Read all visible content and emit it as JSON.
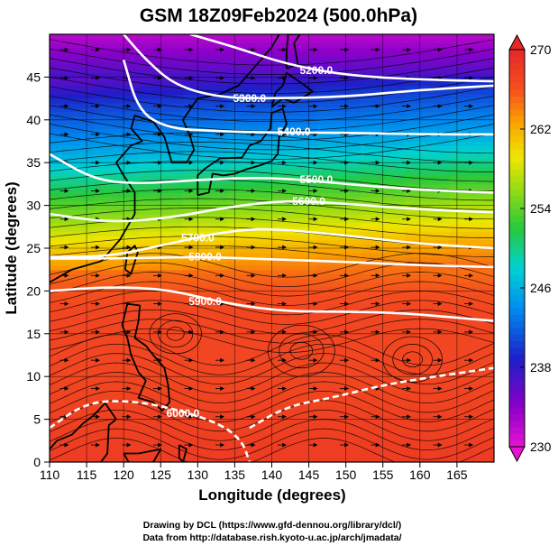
{
  "chart_data": {
    "type": "heatmap",
    "title": "GSM 18Z09Feb2024 (500.0hPa)",
    "xlabel": "Longitude (degrees)",
    "ylabel": "Latitude  (degrees)",
    "xlim": [
      110,
      170
    ],
    "ylim": [
      0,
      50
    ],
    "x_ticks": [
      110,
      115,
      120,
      125,
      130,
      135,
      140,
      145,
      150,
      155,
      160,
      165
    ],
    "y_ticks": [
      0,
      5,
      10,
      15,
      20,
      25,
      30,
      35,
      40,
      45
    ],
    "colorbar": {
      "min": 230,
      "max": 270,
      "ticks": [
        230,
        238,
        246,
        254,
        262,
        270
      ]
    },
    "temperature_field": {
      "by_latitude": [
        {
          "lat": 0,
          "value": 268
        },
        {
          "lat": 10,
          "value": 267
        },
        {
          "lat": 18,
          "value": 267
        },
        {
          "lat": 22,
          "value": 265
        },
        {
          "lat": 25,
          "value": 262
        },
        {
          "lat": 28,
          "value": 258
        },
        {
          "lat": 31,
          "value": 254
        },
        {
          "lat": 34,
          "value": 250
        },
        {
          "lat": 37,
          "value": 246
        },
        {
          "lat": 40,
          "value": 243
        },
        {
          "lat": 43,
          "value": 240
        },
        {
          "lat": 46,
          "value": 236
        },
        {
          "lat": 50,
          "value": 232
        }
      ]
    },
    "contours": [
      {
        "label": "5200.0",
        "points": [
          [
            129,
            50
          ],
          [
            135,
            48.5
          ],
          [
            142,
            46.5
          ],
          [
            150,
            45.2
          ],
          [
            160,
            44.7
          ],
          [
            170,
            44.5
          ]
        ],
        "label_at": [
          146,
          45.8
        ]
      },
      {
        "label": "5300.0",
        "points": [
          [
            120,
            50
          ],
          [
            123,
            47
          ],
          [
            127,
            44
          ],
          [
            133,
            42.6
          ],
          [
            140,
            42.5
          ],
          [
            150,
            42.7
          ],
          [
            160,
            43.5
          ],
          [
            170,
            44
          ]
        ],
        "label_at": [
          137,
          42.5
        ]
      },
      {
        "label": "5400.0",
        "points": [
          [
            120,
            47
          ],
          [
            122,
            41
          ],
          [
            126,
            39
          ],
          [
            132,
            38.7
          ],
          [
            140,
            38.5
          ],
          [
            150,
            38.5
          ],
          [
            160,
            38.3
          ],
          [
            170,
            38.3
          ]
        ],
        "label_at": [
          143,
          38.6
        ]
      },
      {
        "label": "5500.0",
        "points": [
          [
            110,
            36
          ],
          [
            116,
            33
          ],
          [
            122,
            32.5
          ],
          [
            130,
            33
          ],
          [
            140,
            33.3
          ],
          [
            150,
            32.5
          ],
          [
            160,
            31.8
          ],
          [
            170,
            31.5
          ]
        ],
        "label_at": [
          146,
          33
        ]
      },
      {
        "label": "5600.0",
        "points": [
          [
            110,
            29
          ],
          [
            118,
            28
          ],
          [
            126,
            28.5
          ],
          [
            134,
            29.8
          ],
          [
            142,
            30.6
          ],
          [
            150,
            30.2
          ],
          [
            160,
            29.5
          ],
          [
            170,
            29.2
          ]
        ],
        "label_at": [
          145,
          30.5
        ]
      },
      {
        "label": "5700.0",
        "points": [
          [
            110,
            24
          ],
          [
            118,
            24
          ],
          [
            126,
            25.5
          ],
          [
            134,
            27
          ],
          [
            140,
            27.3
          ],
          [
            150,
            26.5
          ],
          [
            160,
            25.5
          ],
          [
            170,
            25
          ]
        ],
        "label_at": [
          130,
          26.2
        ]
      },
      {
        "label": "5800.0",
        "points": [
          [
            110,
            23.8
          ],
          [
            120,
            23.8
          ],
          [
            130,
            24
          ],
          [
            140,
            23.7
          ],
          [
            150,
            23.4
          ],
          [
            160,
            23
          ],
          [
            170,
            22.8
          ]
        ],
        "label_at": [
          131,
          24
        ]
      },
      {
        "label": "5900.0",
        "points": [
          [
            110,
            20
          ],
          [
            118,
            20.5
          ],
          [
            126,
            20.2
          ],
          [
            134,
            18.5
          ],
          [
            142,
            17.6
          ],
          [
            150,
            17.6
          ],
          [
            158,
            17.4
          ],
          [
            166,
            16.8
          ],
          [
            170,
            16.5
          ]
        ],
        "label_at": [
          131,
          18.8
        ]
      },
      {
        "label": "",
        "points": [
          [
            137,
            4
          ],
          [
            142,
            6.5
          ],
          [
            148,
            7.5
          ],
          [
            155,
            9
          ],
          [
            162,
            10
          ],
          [
            170,
            11
          ]
        ],
        "label_at": null
      },
      {
        "label": "6000.0",
        "points": [
          [
            110,
            4
          ],
          [
            115,
            7
          ],
          [
            121,
            7.2
          ],
          [
            127,
            6.2
          ],
          [
            133,
            4.5
          ],
          [
            136,
            2.5
          ],
          [
            137,
            0
          ]
        ],
        "label_at": [
          128,
          5.7
        ]
      }
    ]
  },
  "credits": {
    "line1": "Drawing by DCL (https://www.gfd-dennou.org/library/dcl/)",
    "line2": "Data from http://database.rish.kyoto-u.ac.jp/arch/jmadata/"
  }
}
